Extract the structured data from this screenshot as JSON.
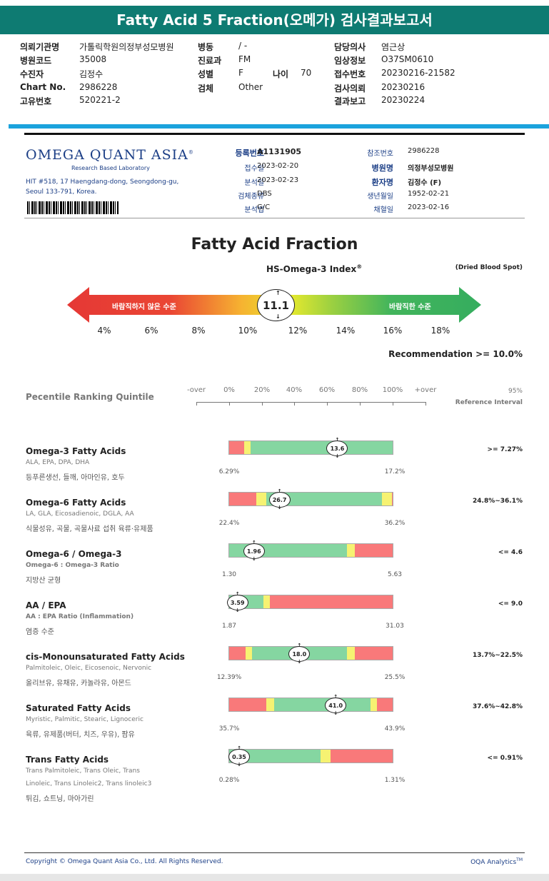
{
  "title": "Fatty Acid 5 Fraction(오메가) 검사결과보고서",
  "header": {
    "col1": [
      {
        "k": "의뢰기관명",
        "v": "가톨릭학원의정부성모병원"
      },
      {
        "k": "병원코드",
        "v": "35008"
      },
      {
        "k": "수진자",
        "v": "김정수"
      },
      {
        "k": "Chart No.",
        "v": "2986228"
      },
      {
        "k": "고유번호",
        "v": "520221-2"
      }
    ],
    "col2": [
      {
        "k": "병동",
        "v": "/ -"
      },
      {
        "k": "진료과",
        "v": "FM"
      },
      {
        "k": "성별",
        "v": "F"
      },
      {
        "k": "검체",
        "v": "Other"
      }
    ],
    "age_label": "나이",
    "age_value": "70",
    "col3": [
      {
        "k": "담당의사",
        "v": "염근상"
      },
      {
        "k": "임상정보",
        "v": "O37SM0610"
      },
      {
        "k": "접수번호",
        "v": "20230216-21582"
      },
      {
        "k": "검사의뢰",
        "v": "20230216"
      },
      {
        "k": "결과보고",
        "v": "20230224"
      }
    ]
  },
  "lab": {
    "logo": "OMEGA QUANT ASIA",
    "logo_tm": "®",
    "logo_sub": "Research Based Laboratory",
    "address1": "HIT #518, 17 Haengdang-dong, Seongdong-gu,",
    "address2": "Seoul 133-791, Korea."
  },
  "registration": {
    "left": [
      {
        "k": "등록번호",
        "v": "A1131905",
        "bold": true
      },
      {
        "k": "접수일",
        "v": "2023-02-20"
      },
      {
        "k": "분석일",
        "v": "2023-02-23"
      },
      {
        "k": "검체종류",
        "v": "DBS"
      },
      {
        "k": "분석법",
        "v": "G/C"
      }
    ],
    "right": [
      {
        "k": "참조번호",
        "v": "2986228"
      },
      {
        "k": "병원명",
        "v": "의정부성모병원",
        "bold": true
      },
      {
        "k": "환자명",
        "v": "김정수 (F)",
        "bold": true
      },
      {
        "k": "생년월일",
        "v": "1952-02-21"
      },
      {
        "k": "채혈일",
        "v": "2023-02-16"
      }
    ]
  },
  "fraction_title": "Fatty Acid Fraction",
  "index": {
    "title": "HS-Omega-3 Index",
    "title_sup": "®",
    "sample": "(Dried Blood Spot)",
    "low_label": "바람직하지 않은 수준",
    "high_label": "바람직한 수준",
    "value": "11.1",
    "scale": [
      "4%",
      "6%",
      "8%",
      "10%",
      "12%",
      "14%",
      "16%",
      "18%"
    ],
    "recommendation": "Recommendation  >= 10.0%"
  },
  "percentile": {
    "title": "Pecentile Ranking Quintile",
    "scale": [
      "-over",
      "0%",
      "20%",
      "40%",
      "60%",
      "80%",
      "100%",
      "+over"
    ],
    "ref_top": "95%",
    "ref_bottom": "Reference Interval"
  },
  "colors": {
    "red": "#f9797a",
    "yellow": "#f6f272",
    "green": "#85d6a1",
    "teal": "#0e7b72",
    "blue": "#1ba3dd"
  },
  "rows": [
    {
      "name": "Omega-3 Fatty Acids",
      "sub1": "ALA, EPA, DPA, DHA",
      "food": "등푸른생선, 들깨, 아마인유, 호두",
      "lo": "6.29%",
      "hi": "17.2%",
      "value": "13.6",
      "value_pos": 0.66,
      "ref": ">= 7.27%",
      "segments": [
        [
          "red",
          0.09
        ],
        [
          "yel",
          0.04
        ],
        [
          "grn",
          0.87
        ]
      ]
    },
    {
      "name": "Omega-6 Fatty Acids",
      "sub1": "LA, GLA, Eicosadienoic, DGLA, AA",
      "food": "식물성유, 곡물, 곡물사료 섭취 육류·유제품",
      "lo": "22.4%",
      "hi": "36.2%",
      "value": "26.7",
      "value_pos": 0.31,
      "ref": "24.8%~36.1%",
      "segments": [
        [
          "red",
          0.165
        ],
        [
          "yel",
          0.06
        ],
        [
          "grn",
          0.71
        ],
        [
          "yel",
          0.06
        ],
        [
          "red",
          0.005
        ]
      ]
    },
    {
      "name": "Omega-6 / Omega-3",
      "sub1": "Omega-6 : Omega-3 Ratio",
      "sub1_bold": true,
      "food": "지방산 균형",
      "lo": "1.30",
      "hi": "5.63",
      "value": "1.96",
      "value_pos": 0.155,
      "ref": "<= 4.6",
      "segments": [
        [
          "grn",
          0.72
        ],
        [
          "yel",
          0.05
        ],
        [
          "red",
          0.23
        ]
      ]
    },
    {
      "name": "AA / EPA",
      "sub1": "AA : EPA Ratio (Inflammation)",
      "sub1_bold": true,
      "food": "염증 수준",
      "lo": "1.87",
      "hi": "31.03",
      "value": "3.59",
      "value_pos": 0.055,
      "ref": "<= 9.0",
      "segments": [
        [
          "grn",
          0.21
        ],
        [
          "yel",
          0.04
        ],
        [
          "red",
          0.75
        ]
      ]
    },
    {
      "name": "cis-Monounsaturated Fatty Acids",
      "sub1": "Palmitoleic, Oleic, Eicosenoic, Nervonic",
      "food": "올리브유, 유채유, 카놀라유, 아몬드",
      "lo": "12.39%",
      "hi": "25.5%",
      "value": "18.0",
      "value_pos": 0.43,
      "ref": "13.7%~22.5%",
      "segments": [
        [
          "red",
          0.1
        ],
        [
          "yel",
          0.04
        ],
        [
          "grn",
          0.58
        ],
        [
          "yel",
          0.05
        ],
        [
          "red",
          0.23
        ]
      ]
    },
    {
      "name": "Saturated Fatty Acids",
      "sub1": "Myristic, Palmitic, Stearic, Lignoceric",
      "food": "육류, 유제품(버터, 치즈, 우유), 팜유",
      "lo": "35.7%",
      "hi": "43.9%",
      "value": "41.0",
      "value_pos": 0.65,
      "ref": "37.6%~42.8%",
      "segments": [
        [
          "red",
          0.225
        ],
        [
          "yel",
          0.05
        ],
        [
          "grn",
          0.59
        ],
        [
          "yel",
          0.04
        ],
        [
          "red",
          0.095
        ]
      ]
    },
    {
      "name": "Trans Fatty Acids",
      "sub1": "Trans Palmitoleic, Trans Oleic, Trans",
      "sub2": "Linoleic, Trans Linoleic2, Trans linoleic3",
      "food": "튀김, 쇼트닝, 마아가린",
      "lo": "0.28%",
      "hi": "1.31%",
      "value": "0.35",
      "value_pos": 0.065,
      "ref": "<= 0.91%",
      "segments": [
        [
          "grn",
          0.56
        ],
        [
          "yel",
          0.06
        ],
        [
          "red",
          0.38
        ]
      ]
    }
  ],
  "footer": {
    "copyright": "Copyright © Omega Quant Asia Co., Ltd.  All Rights Reserved.",
    "brand": "OQA Analytics",
    "brand_tm": "TM"
  }
}
